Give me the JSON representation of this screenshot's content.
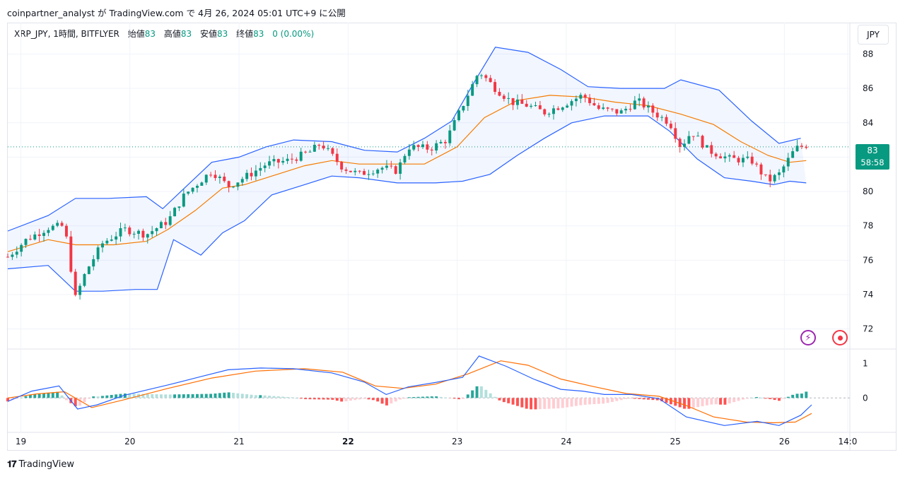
{
  "caption": "coinpartner_analyst が TradingView.com で 4月 26, 2024 05:01 UTC+9 に公開",
  "legend": {
    "symbol": "XRP_JPY, 1時間, BITFLYER",
    "open_label": "始値",
    "open_value": "83",
    "high_label": "高値",
    "high_value": "83",
    "low_label": "安値",
    "low_value": "83",
    "close_label": "終値",
    "close_value": "83",
    "change": "0 (0.00%)"
  },
  "currency_button": "JPY",
  "last_price": {
    "value": "83",
    "countdown": "58:58"
  },
  "brand": "TradingView",
  "icons": {
    "alert": "bolt-icon",
    "record": "record-icon",
    "logo": "tradingview-logo-icon"
  },
  "colors": {
    "up": "#089981",
    "down": "#f23645",
    "band": "#2962ff",
    "basis": "#f57c00",
    "macd": "#2962ff",
    "signal": "#ff6d00"
  },
  "chart_data": [
    {
      "type": "candlestick",
      "title": "XRP_JPY, 1時間, BITFLYER",
      "ylim": [
        71,
        89.5
      ],
      "yticks": [
        72,
        74,
        76,
        78,
        80,
        82,
        84,
        86,
        88
      ],
      "xlim": [
        18.88,
        26.6
      ],
      "xticks": [
        {
          "x": 19,
          "label": "19"
        },
        {
          "x": 20,
          "label": "20"
        },
        {
          "x": 21,
          "label": "21"
        },
        {
          "x": 22,
          "label": "22"
        },
        {
          "x": 23,
          "label": "23"
        },
        {
          "x": 24,
          "label": "24"
        },
        {
          "x": 25,
          "label": "25"
        },
        {
          "x": 26,
          "label": "26"
        },
        {
          "x": 26.58,
          "label": "14:0"
        }
      ],
      "current_price": 82.6,
      "price_anchors": [
        [
          18.88,
          76.2
        ],
        [
          19.05,
          77.2
        ],
        [
          19.25,
          77.9
        ],
        [
          19.4,
          78.0
        ],
        [
          19.5,
          73.8
        ],
        [
          19.6,
          75.4
        ],
        [
          19.75,
          77.0
        ],
        [
          19.95,
          77.8
        ],
        [
          20.15,
          77.5
        ],
        [
          20.35,
          78.3
        ],
        [
          20.5,
          79.8
        ],
        [
          20.75,
          81.2
        ],
        [
          20.9,
          80.3
        ],
        [
          21.1,
          81.0
        ],
        [
          21.25,
          81.6
        ],
        [
          21.45,
          81.8
        ],
        [
          21.65,
          82.3
        ],
        [
          21.75,
          82.8
        ],
        [
          21.95,
          81.4
        ],
        [
          22.1,
          81.0
        ],
        [
          22.3,
          81.4
        ],
        [
          22.45,
          81.2
        ],
        [
          22.55,
          82.6
        ],
        [
          22.75,
          82.5
        ],
        [
          22.9,
          83.0
        ],
        [
          23.05,
          85.0
        ],
        [
          23.2,
          87.0
        ],
        [
          23.35,
          86.0
        ],
        [
          23.5,
          85.2
        ],
        [
          23.65,
          85.0
        ],
        [
          23.8,
          84.6
        ],
        [
          23.95,
          85.0
        ],
        [
          24.15,
          85.6
        ],
        [
          24.3,
          84.8
        ],
        [
          24.5,
          84.6
        ],
        [
          24.65,
          85.3
        ],
        [
          24.8,
          84.6
        ],
        [
          24.95,
          84.0
        ],
        [
          25.05,
          82.6
        ],
        [
          25.15,
          83.5
        ],
        [
          25.3,
          82.4
        ],
        [
          25.5,
          81.9
        ],
        [
          25.7,
          81.8
        ],
        [
          25.85,
          80.6
        ],
        [
          25.95,
          81.0
        ],
        [
          26.1,
          82.5
        ],
        [
          26.2,
          82.7
        ]
      ],
      "bollinger_bands": {
        "upper": [
          [
            18.88,
            77.7
          ],
          [
            19.25,
            78.6
          ],
          [
            19.5,
            79.6
          ],
          [
            19.8,
            79.6
          ],
          [
            20.15,
            79.7
          ],
          [
            20.3,
            79.0
          ],
          [
            20.5,
            80.2
          ],
          [
            20.75,
            81.7
          ],
          [
            21.0,
            82.0
          ],
          [
            21.25,
            82.6
          ],
          [
            21.5,
            83.0
          ],
          [
            21.85,
            82.9
          ],
          [
            22.15,
            82.4
          ],
          [
            22.45,
            82.3
          ],
          [
            22.7,
            83.1
          ],
          [
            22.95,
            84.1
          ],
          [
            23.15,
            86.3
          ],
          [
            23.35,
            88.4
          ],
          [
            23.65,
            88.1
          ],
          [
            23.95,
            87.1
          ],
          [
            24.2,
            86.1
          ],
          [
            24.5,
            86.0
          ],
          [
            24.9,
            86.0
          ],
          [
            25.05,
            86.5
          ],
          [
            25.4,
            85.9
          ],
          [
            25.7,
            84.1
          ],
          [
            25.95,
            82.8
          ],
          [
            26.15,
            83.1
          ]
        ],
        "basis": [
          [
            18.88,
            76.5
          ],
          [
            19.25,
            77.2
          ],
          [
            19.5,
            76.9
          ],
          [
            19.85,
            76.9
          ],
          [
            20.15,
            77.1
          ],
          [
            20.35,
            77.8
          ],
          [
            20.6,
            78.9
          ],
          [
            20.85,
            80.2
          ],
          [
            21.05,
            80.4
          ],
          [
            21.35,
            81.0
          ],
          [
            21.6,
            81.5
          ],
          [
            21.85,
            81.8
          ],
          [
            22.1,
            81.6
          ],
          [
            22.4,
            81.6
          ],
          [
            22.7,
            81.6
          ],
          [
            23.0,
            82.6
          ],
          [
            23.25,
            84.3
          ],
          [
            23.55,
            85.3
          ],
          [
            23.85,
            85.6
          ],
          [
            24.15,
            85.5
          ],
          [
            24.45,
            85.2
          ],
          [
            24.75,
            85.0
          ],
          [
            25.05,
            84.5
          ],
          [
            25.35,
            83.9
          ],
          [
            25.6,
            82.9
          ],
          [
            25.85,
            82.1
          ],
          [
            26.05,
            81.7
          ],
          [
            26.2,
            81.8
          ]
        ],
        "lower": [
          [
            18.88,
            75.5
          ],
          [
            19.25,
            75.7
          ],
          [
            19.5,
            74.2
          ],
          [
            19.75,
            74.2
          ],
          [
            20.05,
            74.3
          ],
          [
            20.25,
            74.3
          ],
          [
            20.4,
            77.2
          ],
          [
            20.65,
            76.3
          ],
          [
            20.85,
            77.6
          ],
          [
            21.05,
            78.3
          ],
          [
            21.3,
            79.8
          ],
          [
            21.6,
            80.4
          ],
          [
            21.85,
            80.9
          ],
          [
            22.1,
            80.8
          ],
          [
            22.45,
            80.5
          ],
          [
            22.8,
            80.5
          ],
          [
            23.05,
            80.6
          ],
          [
            23.3,
            81.0
          ],
          [
            23.55,
            82.1
          ],
          [
            23.8,
            83.1
          ],
          [
            24.05,
            84.0
          ],
          [
            24.35,
            84.4
          ],
          [
            24.75,
            84.4
          ],
          [
            24.95,
            83.5
          ],
          [
            25.2,
            81.9
          ],
          [
            25.45,
            80.8
          ],
          [
            25.7,
            80.6
          ],
          [
            25.9,
            80.4
          ],
          [
            26.05,
            80.6
          ],
          [
            26.2,
            80.5
          ]
        ]
      }
    },
    {
      "type": "macd",
      "ylim": [
        -1.0,
        1.3
      ],
      "yticks": [
        0,
        1
      ],
      "macd_line": [
        [
          18.88,
          -0.1
        ],
        [
          19.1,
          0.2
        ],
        [
          19.35,
          0.35
        ],
        [
          19.52,
          -0.32
        ],
        [
          19.7,
          -0.2
        ],
        [
          19.95,
          0.08
        ],
        [
          20.35,
          0.38
        ],
        [
          20.65,
          0.62
        ],
        [
          20.9,
          0.82
        ],
        [
          21.2,
          0.87
        ],
        [
          21.5,
          0.85
        ],
        [
          21.85,
          0.73
        ],
        [
          22.15,
          0.46
        ],
        [
          22.35,
          0.1
        ],
        [
          22.55,
          0.32
        ],
        [
          22.8,
          0.45
        ],
        [
          23.05,
          0.6
        ],
        [
          23.2,
          1.22
        ],
        [
          23.45,
          0.92
        ],
        [
          23.7,
          0.55
        ],
        [
          23.95,
          0.25
        ],
        [
          24.15,
          0.2
        ],
        [
          24.35,
          0.1
        ],
        [
          24.6,
          0.1
        ],
        [
          24.85,
          -0.02
        ],
        [
          25.1,
          -0.55
        ],
        [
          25.45,
          -0.8
        ],
        [
          25.75,
          -0.68
        ],
        [
          25.95,
          -0.8
        ],
        [
          26.15,
          -0.5
        ],
        [
          26.25,
          -0.2
        ]
      ],
      "signal_line": [
        [
          18.88,
          0.0
        ],
        [
          19.15,
          0.12
        ],
        [
          19.4,
          0.18
        ],
        [
          19.65,
          -0.28
        ],
        [
          19.95,
          -0.05
        ],
        [
          20.35,
          0.28
        ],
        [
          20.75,
          0.58
        ],
        [
          21.15,
          0.78
        ],
        [
          21.6,
          0.85
        ],
        [
          21.95,
          0.75
        ],
        [
          22.25,
          0.35
        ],
        [
          22.5,
          0.28
        ],
        [
          22.8,
          0.4
        ],
        [
          23.1,
          0.7
        ],
        [
          23.4,
          1.08
        ],
        [
          23.65,
          0.95
        ],
        [
          23.95,
          0.55
        ],
        [
          24.25,
          0.33
        ],
        [
          24.55,
          0.13
        ],
        [
          24.85,
          0.05
        ],
        [
          25.1,
          -0.22
        ],
        [
          25.35,
          -0.55
        ],
        [
          25.65,
          -0.7
        ],
        [
          25.9,
          -0.72
        ],
        [
          26.1,
          -0.7
        ],
        [
          26.25,
          -0.45
        ]
      ]
    }
  ]
}
